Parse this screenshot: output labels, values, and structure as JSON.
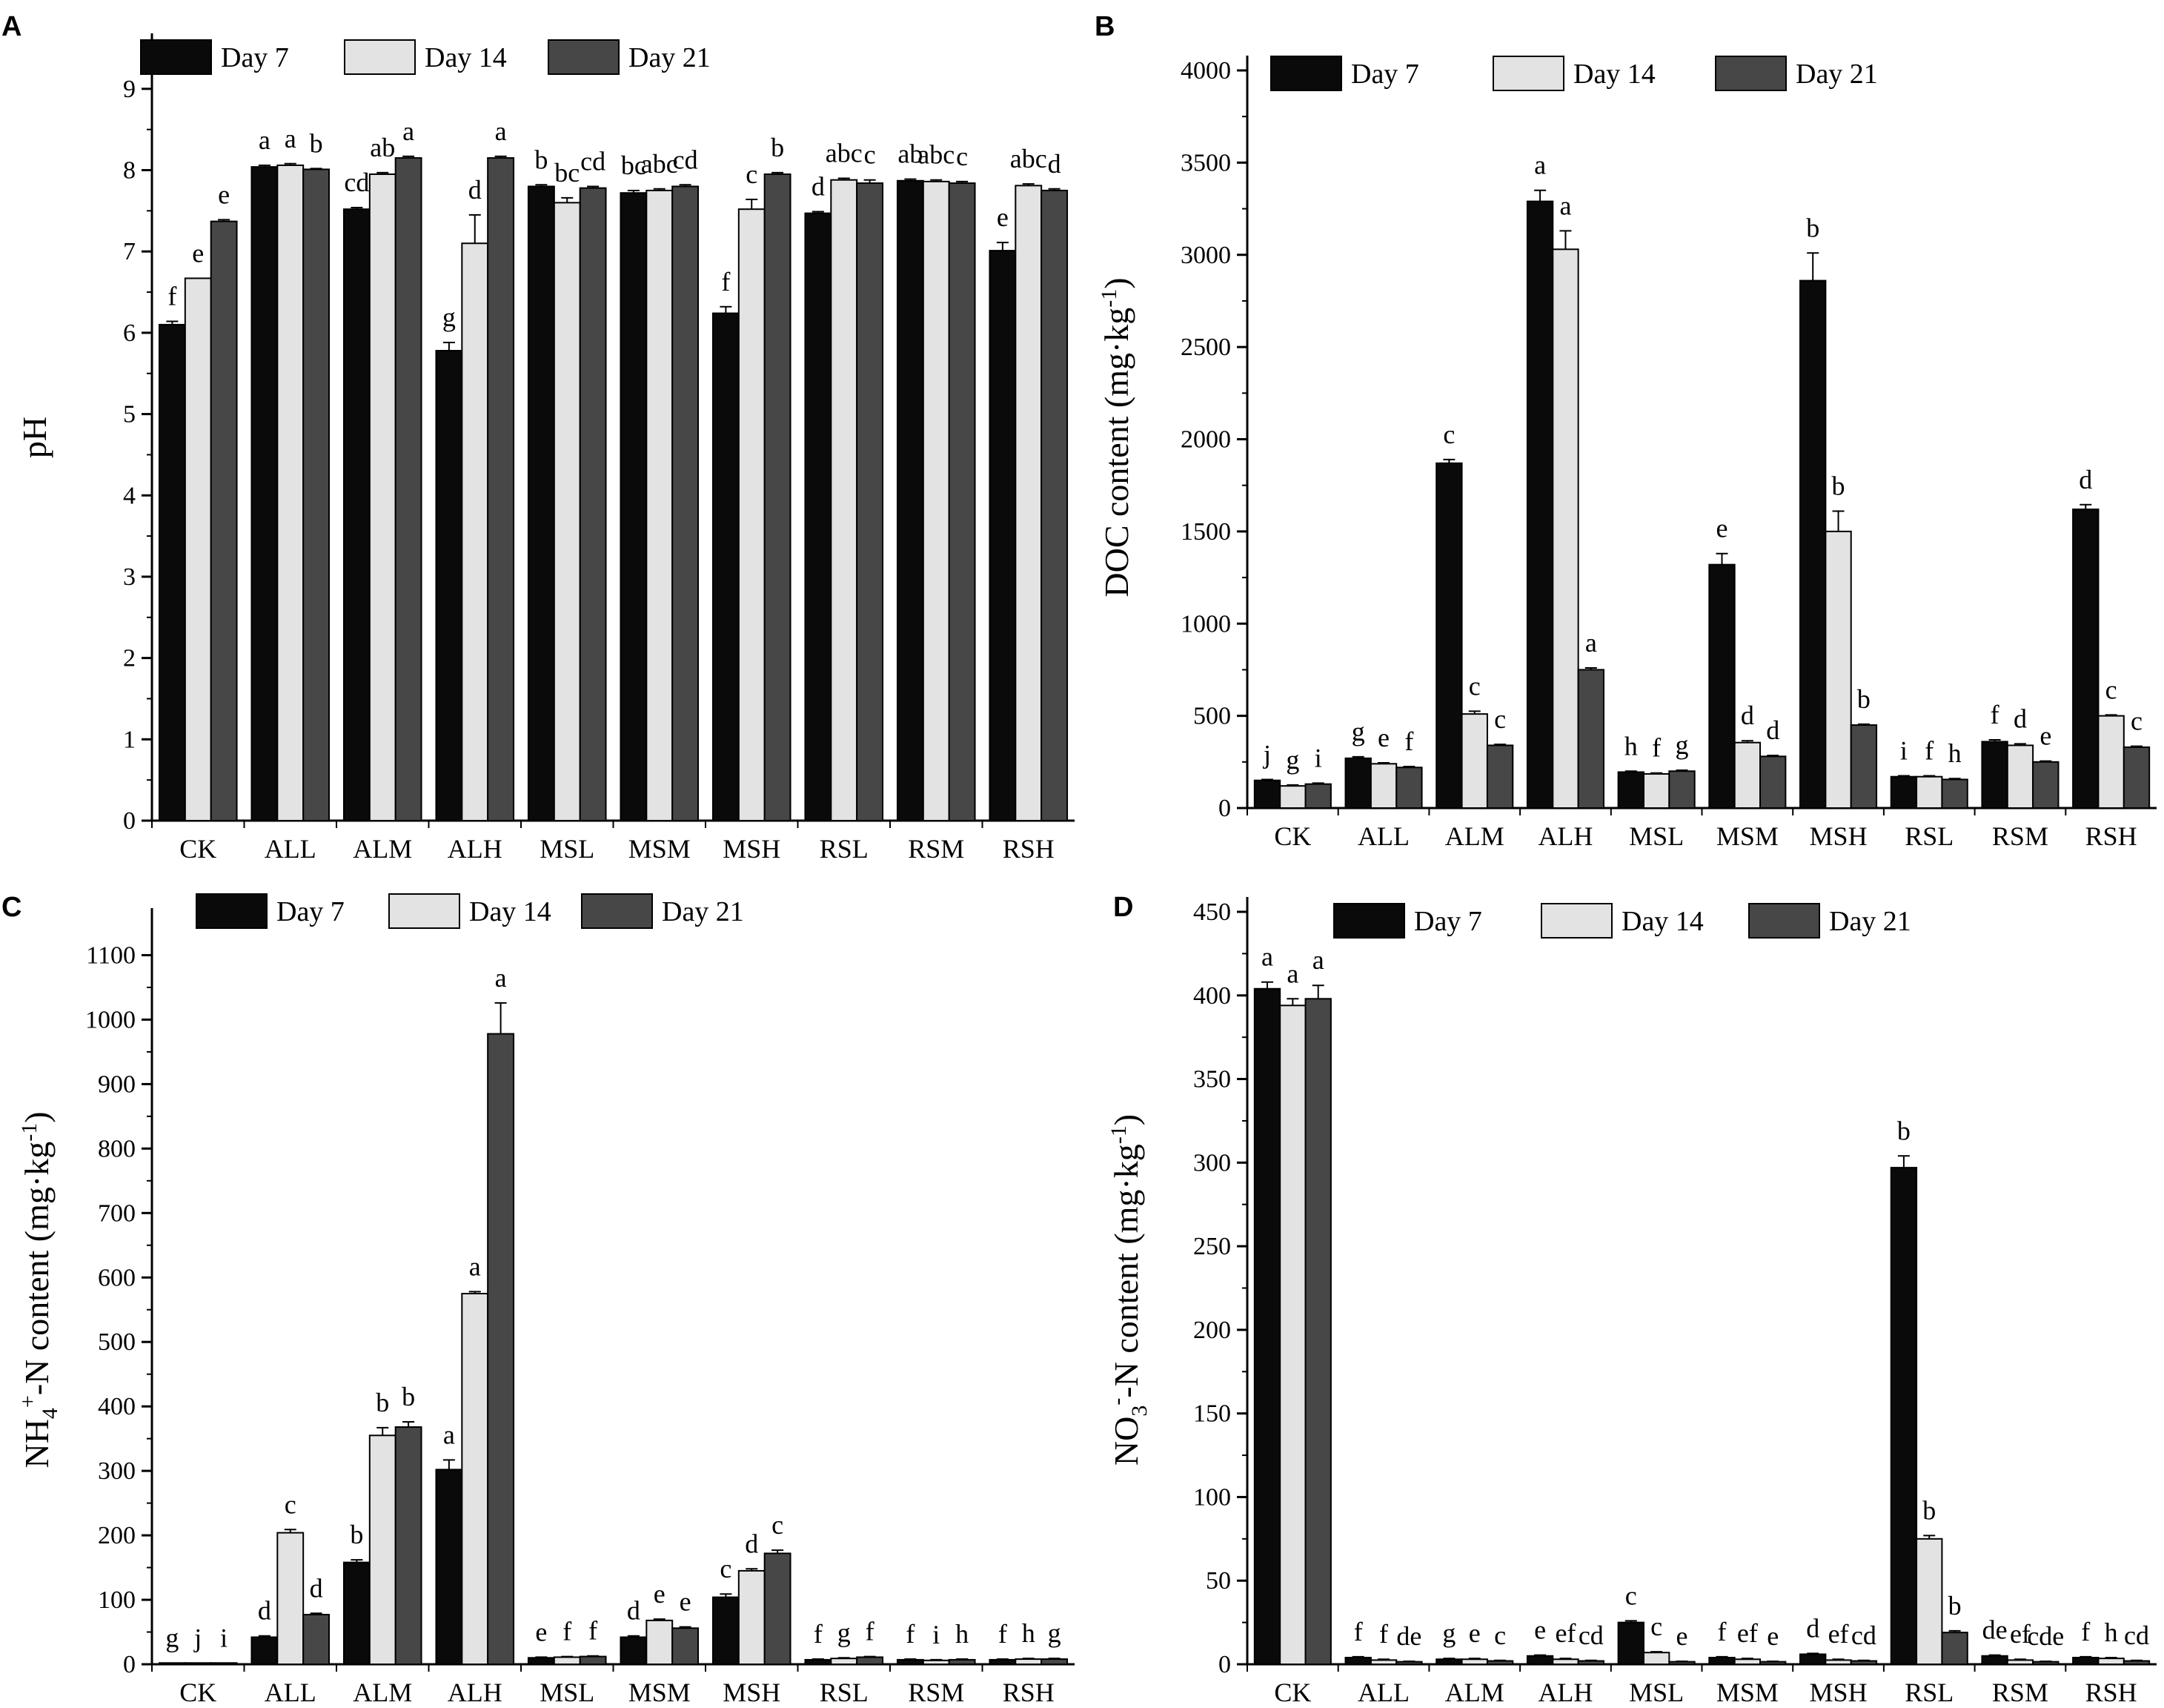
{
  "legend": [
    "Day 7",
    "Day 14",
    "Day 21"
  ],
  "colors": {
    "day7": "#0a0a0a",
    "day14": "#e3e3e3",
    "day21": "#474747",
    "axis": "#000000"
  },
  "chart_data": [
    {
      "panel": "A",
      "type": "bar",
      "categories": [
        "CK",
        "ALL",
        "ALM",
        "ALH",
        "MSL",
        "MSM",
        "MSH",
        "RSL",
        "RSM",
        "RSH"
      ],
      "ylabel": "pH",
      "ylim": [
        0,
        9.5
      ],
      "ticks": [
        0,
        1,
        2,
        3,
        4,
        5,
        6,
        7,
        8,
        9
      ],
      "series": [
        {
          "name": "Day 7",
          "values": [
            6.1,
            8.04,
            7.52,
            5.78,
            7.8,
            7.72,
            6.24,
            7.47,
            7.87,
            7.01
          ],
          "errors": [
            0.04,
            0.02,
            0.02,
            0.1,
            0.02,
            0.03,
            0.08,
            0.02,
            0.02,
            0.1
          ],
          "labels": [
            "f",
            "a",
            "cd",
            "g",
            "b",
            "bc",
            "f",
            "d",
            "ab",
            "e"
          ]
        },
        {
          "name": "Day 14",
          "values": [
            6.67,
            8.06,
            7.95,
            7.1,
            7.6,
            7.75,
            7.52,
            7.88,
            7.86,
            7.81
          ],
          "errors": [
            0.0,
            0.02,
            0.02,
            0.35,
            0.06,
            0.02,
            0.12,
            0.02,
            0.02,
            0.02
          ],
          "labels": [
            "e",
            "a",
            "ab",
            "d",
            "bc",
            "abc",
            "c",
            "abc",
            "abc",
            "abc"
          ]
        },
        {
          "name": "Day 21",
          "values": [
            7.37,
            8.01,
            8.15,
            8.15,
            7.78,
            7.8,
            7.95,
            7.84,
            7.84,
            7.75
          ],
          "errors": [
            0.02,
            0.01,
            0.02,
            0.02,
            0.02,
            0.02,
            0.02,
            0.04,
            0.02,
            0.02
          ],
          "labels": [
            "e",
            "b",
            "a",
            "a",
            "cd",
            "cd",
            "b",
            "c",
            "c",
            "d"
          ]
        }
      ]
    },
    {
      "panel": "B",
      "type": "bar",
      "categories": [
        "CK",
        "ALL",
        "ALM",
        "ALH",
        "MSL",
        "MSM",
        "MSH",
        "RSL",
        "RSM",
        "RSH"
      ],
      "ylabel": "DOC content (mg·kg",
      "ylabel_sup": "-1",
      "ylabel_end": ")",
      "ylim": [
        0,
        4000
      ],
      "ticks": [
        0,
        500,
        1000,
        1500,
        2000,
        2500,
        3000,
        3500,
        4000
      ],
      "series": [
        {
          "name": "Day 7",
          "values": [
            150,
            270,
            1870,
            3290,
            195,
            1320,
            2860,
            170,
            360,
            1620
          ],
          "errors": [
            5,
            8,
            20,
            60,
            5,
            60,
            150,
            5,
            10,
            25
          ],
          "labels": [
            "j",
            "g",
            "c",
            "a",
            "h",
            "e",
            "b",
            "i",
            "f",
            "d"
          ]
        },
        {
          "name": "Day 14",
          "values": [
            120,
            240,
            510,
            3030,
            185,
            355,
            1500,
            170,
            340,
            500
          ],
          "errors": [
            5,
            5,
            15,
            100,
            5,
            10,
            110,
            5,
            8,
            5
          ],
          "labels": [
            "g",
            "e",
            "c",
            "a",
            "f",
            "d",
            "b",
            "f",
            "d",
            "c"
          ]
        },
        {
          "name": "Day 21",
          "values": [
            130,
            220,
            340,
            750,
            200,
            280,
            450,
            155,
            250,
            330
          ],
          "errors": [
            5,
            5,
            5,
            10,
            5,
            5,
            5,
            5,
            5,
            5
          ],
          "labels": [
            "i",
            "f",
            "c",
            "a",
            "g",
            "d",
            "b",
            "h",
            "e",
            "c"
          ]
        }
      ]
    },
    {
      "panel": "C",
      "type": "bar",
      "categories": [
        "CK",
        "ALL",
        "ALM",
        "ALH",
        "MSL",
        "MSM",
        "MSH",
        "RSL",
        "RSM",
        "RSH"
      ],
      "ylabel": "NH",
      "ylabel_sub": "4",
      "ylabel_sup": "+",
      "ylabel_mid": "-N content (mg·kg",
      "ylabel_sup2": "-1",
      "ylabel_end": ")",
      "ylim": [
        0,
        1150
      ],
      "ticks": [
        0,
        100,
        200,
        300,
        400,
        500,
        600,
        700,
        800,
        900,
        1000,
        1100
      ],
      "series": [
        {
          "name": "Day 7",
          "values": [
            2,
            42,
            158,
            302,
            10,
            42,
            104,
            7,
            7,
            7
          ],
          "errors": [
            0,
            2,
            4,
            15,
            1,
            2,
            5,
            1,
            1,
            1
          ],
          "labels": [
            "g",
            "d",
            "b",
            "a",
            "e",
            "d",
            "c",
            "f",
            "f",
            "f"
          ]
        },
        {
          "name": "Day 14",
          "values": [
            2,
            204,
            355,
            575,
            11,
            68,
            145,
            9,
            6,
            8
          ],
          "errors": [
            0,
            5,
            12,
            3,
            1,
            2,
            3,
            1,
            1,
            1
          ],
          "labels": [
            "j",
            "c",
            "b",
            "a",
            "f",
            "e",
            "d",
            "g",
            "i",
            "h"
          ]
        },
        {
          "name": "Day 21",
          "values": [
            2,
            77,
            368,
            978,
            12,
            56,
            172,
            11,
            7,
            8
          ],
          "errors": [
            0,
            2,
            8,
            48,
            1,
            2,
            5,
            1,
            1,
            1
          ],
          "labels": [
            "i",
            "d",
            "b",
            "a",
            "f",
            "e",
            "c",
            "f",
            "h",
            "g"
          ]
        }
      ]
    },
    {
      "panel": "D",
      "type": "bar",
      "categories": [
        "CK",
        "ALL",
        "ALM",
        "ALH",
        "MSL",
        "MSM",
        "MSH",
        "RSL",
        "RSM",
        "RSH"
      ],
      "ylabel": "NO",
      "ylabel_sub": "3",
      "ylabel_sup": "-",
      "ylabel_mid": "-N content (mg·kg",
      "ylabel_sup2": "-1",
      "ylabel_end": ")",
      "ylim": [
        0,
        450
      ],
      "ticks": [
        0,
        50,
        100,
        150,
        200,
        250,
        300,
        350,
        400,
        450
      ],
      "series": [
        {
          "name": "Day 7",
          "values": [
            404,
            4,
            3,
            5,
            25,
            4,
            6,
            297,
            5,
            4
          ],
          "errors": [
            4,
            0.5,
            0.5,
            0.5,
            1,
            0.5,
            0.5,
            7,
            0.5,
            0.5
          ],
          "labels": [
            "a",
            "f",
            "g",
            "e",
            "c",
            "f",
            "d",
            "b",
            "de",
            "f"
          ]
        },
        {
          "name": "Day 14",
          "values": [
            394,
            2.5,
            3,
            3,
            7,
            3,
            2.5,
            75,
            2.5,
            3.5
          ],
          "errors": [
            4,
            0.5,
            0.5,
            0.5,
            0.5,
            0.5,
            0.5,
            2,
            0.5,
            0.5
          ],
          "labels": [
            "a",
            "f",
            "e",
            "ef",
            "c",
            "ef",
            "ef",
            "b",
            "ef",
            "h"
          ]
        },
        {
          "name": "Day 21",
          "values": [
            398,
            1.5,
            2,
            2,
            1.5,
            1.5,
            2,
            19,
            1.5,
            2
          ],
          "errors": [
            8,
            0.3,
            0.3,
            0.3,
            0.3,
            0.3,
            0.3,
            1,
            0.3,
            0.3
          ],
          "labels": [
            "a",
            "de",
            "c",
            "cd",
            "e",
            "e",
            "cd",
            "b",
            "cde",
            "cd"
          ]
        }
      ]
    }
  ]
}
